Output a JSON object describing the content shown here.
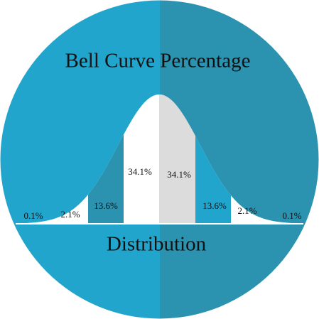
{
  "title": "Bell Curve Percentage",
  "subtitle": "Distribution",
  "segments": [
    {
      "label": "0.1%"
    },
    {
      "label": "2.1%"
    },
    {
      "label": "13.6%"
    },
    {
      "label": "34.1%"
    },
    {
      "label": "34.1%"
    },
    {
      "label": "13.6%"
    },
    {
      "label": "2.1%"
    },
    {
      "label": "0.1%"
    }
  ]
}
